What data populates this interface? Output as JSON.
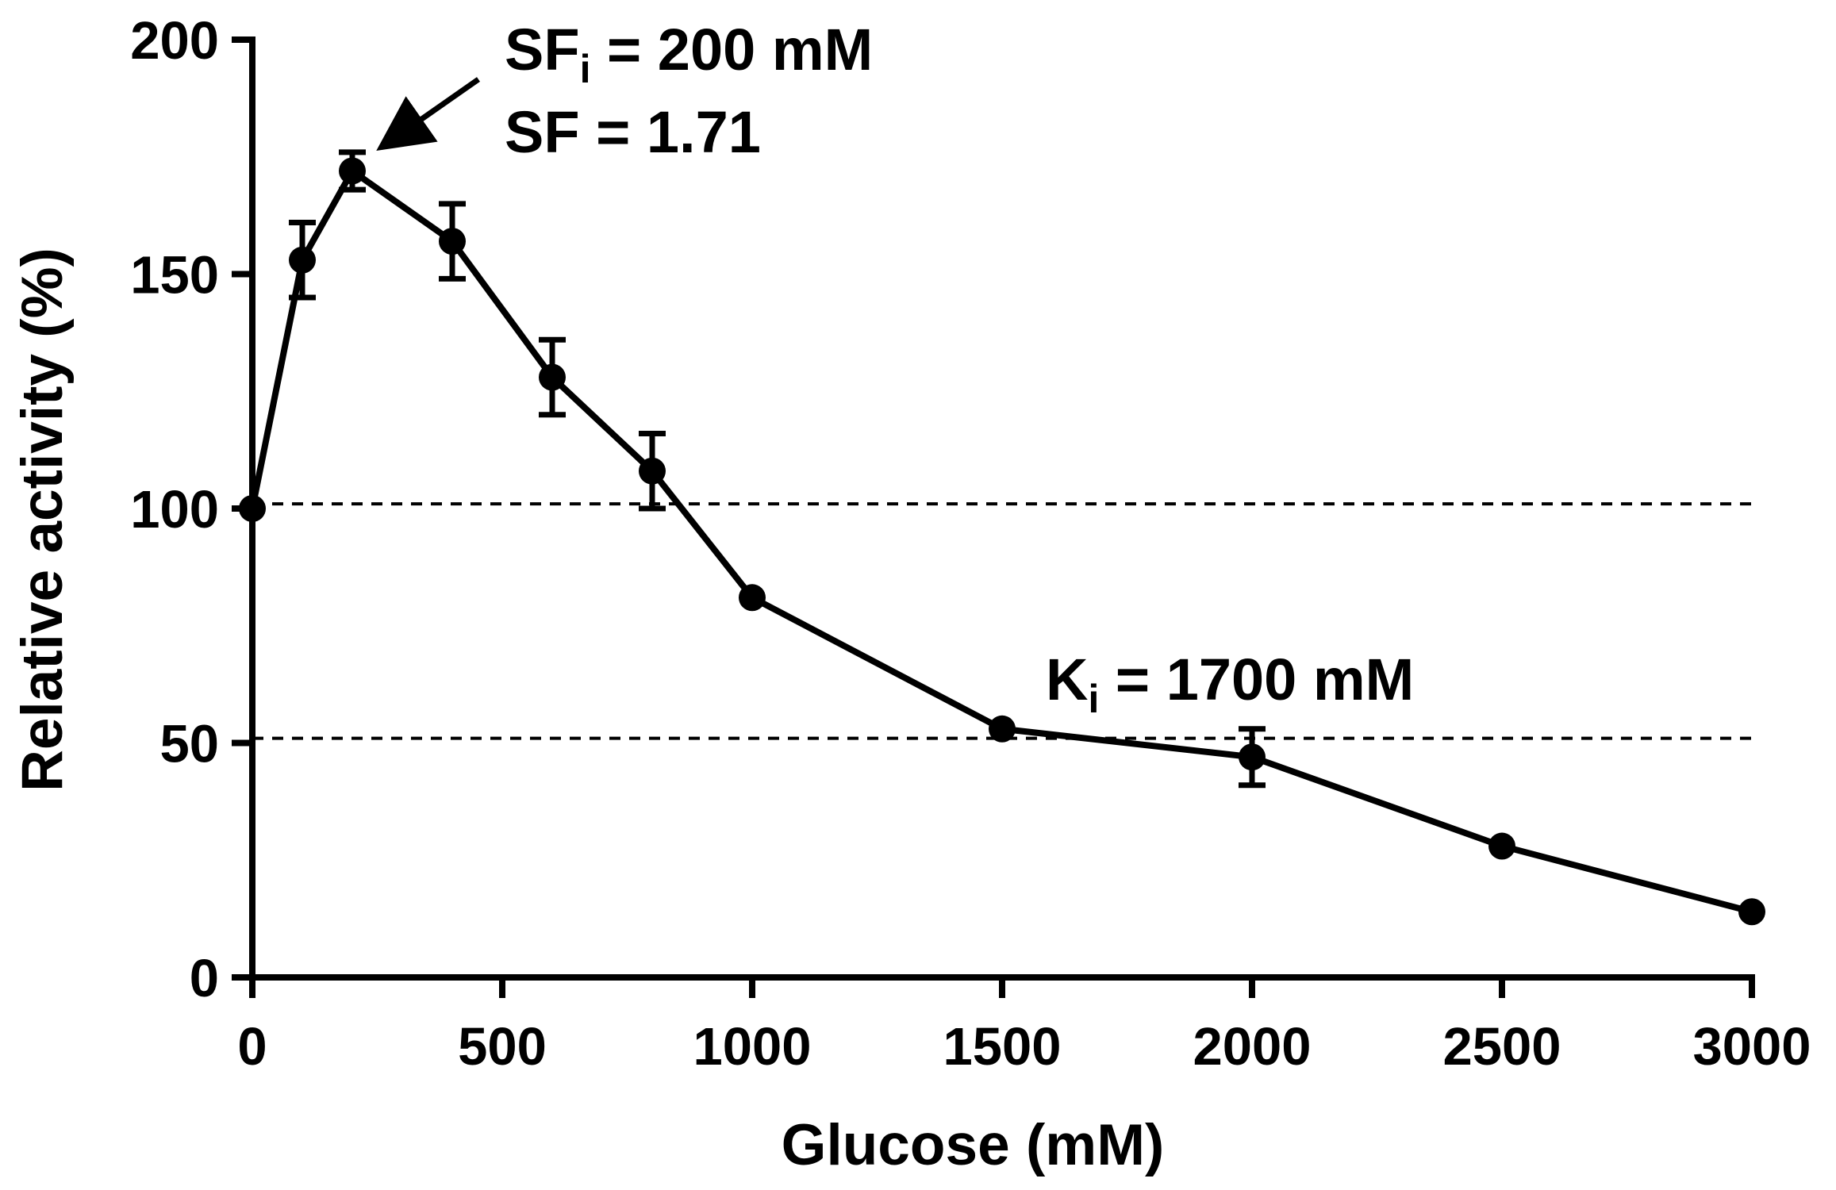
{
  "chart_data": {
    "type": "line",
    "title": "",
    "xlabel": "Glucose (mM)",
    "ylabel": "Relative activity (%)",
    "xlim": [
      0,
      3000
    ],
    "ylim": [
      0,
      200
    ],
    "xticks": [
      "0",
      "500",
      "1000",
      "1500",
      "2000",
      "2500",
      "3000"
    ],
    "yticks": [
      "0",
      "50",
      "100",
      "150",
      "200"
    ],
    "grid": false,
    "legend": "none",
    "series": [
      {
        "name": "Relative activity",
        "x": [
          0,
          100,
          200,
          400,
          600,
          800,
          1000,
          1500,
          2000,
          2500,
          3000
        ],
        "y": [
          100,
          153,
          172,
          157,
          128,
          108,
          81,
          53,
          47,
          28,
          14
        ],
        "error": [
          0,
          8,
          4,
          8,
          8,
          8,
          0,
          0,
          6,
          0,
          0
        ]
      }
    ],
    "reference_lines": [
      {
        "axis": "y",
        "value": 101,
        "style": "dashed"
      },
      {
        "axis": "y",
        "value": 51,
        "style": "dashed"
      }
    ],
    "annotations": {
      "sfi": {
        "symbol": "SF",
        "subscript": "i",
        "text": " = 200 mM"
      },
      "sf": {
        "text": "SF = 1.71"
      },
      "ki": {
        "symbol": "K",
        "subscript": "i",
        "text": " = 1700 mM"
      }
    },
    "colors": {
      "line": "#000000",
      "background": "#ffffff"
    }
  }
}
